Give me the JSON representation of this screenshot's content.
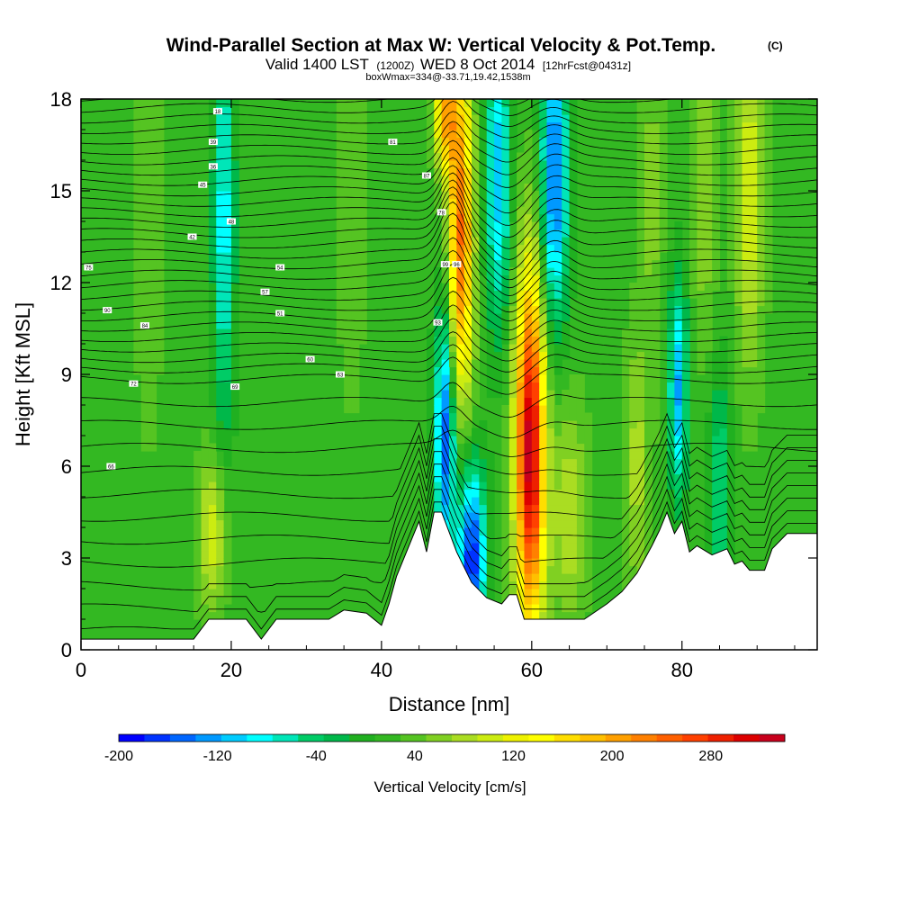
{
  "chart_data": {
    "type": "heatmap",
    "title": "Wind-Parallel Section at Max W: Vertical Velocity & Pot.Temp.",
    "title_mark": "(C)",
    "subtitle": {
      "valid_a": "Valid 1400 LST",
      "valid_b": "(1200Z)",
      "valid_c": "WED 8 Oct 2014",
      "valid_d": "[12hrFcst@0431z]"
    },
    "subtitle2": "boxWmax=334@-33.71,19.42,1538m",
    "xlabel": "Distance [nm]",
    "ylabel": "Height [Kft MSL]",
    "xlim": [
      0,
      98
    ],
    "ylim": [
      0,
      18
    ],
    "xticks": [
      0,
      20,
      40,
      60,
      80
    ],
    "yticks": [
      0,
      3,
      6,
      9,
      12,
      15,
      18
    ],
    "colorbar": {
      "label": "Vertical Velocity [cm/s]",
      "range": [
        -200,
        340
      ],
      "tick_values": [
        -200,
        -120,
        -40,
        40,
        120,
        200,
        280
      ],
      "tick_labels": [
        "-200",
        "-120",
        "-40",
        "40",
        "120",
        "200",
        "280"
      ],
      "colors": [
        "#0000ff",
        "#0033ff",
        "#0066ff",
        "#0099ff",
        "#00ccff",
        "#00ffff",
        "#00e6b8",
        "#00cc66",
        "#00b84a",
        "#20b020",
        "#33b822",
        "#55c422",
        "#80d022",
        "#aadd22",
        "#ccec11",
        "#eef200",
        "#ffff00",
        "#ffde00",
        "#ffc000",
        "#ffa000",
        "#ff8000",
        "#ff6000",
        "#ff4000",
        "#ee2000",
        "#dd0000",
        "#c8001c"
      ]
    },
    "terrain_kft": [
      [
        0,
        0.35
      ],
      [
        15,
        0.35
      ],
      [
        17,
        1
      ],
      [
        22,
        1
      ],
      [
        24,
        0.35
      ],
      [
        26,
        1
      ],
      [
        33,
        1
      ],
      [
        35,
        1.3
      ],
      [
        38,
        1.2
      ],
      [
        40,
        0.8
      ],
      [
        41,
        1.5
      ],
      [
        42,
        2.4
      ],
      [
        44,
        3.6
      ],
      [
        45,
        4.2
      ],
      [
        46,
        3.2
      ],
      [
        47,
        4.5
      ],
      [
        48,
        4.5
      ],
      [
        50,
        3.2
      ],
      [
        52,
        2.2
      ],
      [
        54,
        1.7
      ],
      [
        56,
        1.5
      ],
      [
        57,
        1.8
      ],
      [
        58,
        1.8
      ],
      [
        59,
        1.0
      ],
      [
        67,
        1.0
      ],
      [
        70,
        1.5
      ],
      [
        72,
        1.9
      ],
      [
        74,
        2.5
      ],
      [
        76,
        3.4
      ],
      [
        77,
        3.9
      ],
      [
        78,
        4.5
      ],
      [
        79,
        3.8
      ],
      [
        80,
        4.2
      ],
      [
        81,
        3.2
      ],
      [
        82,
        3.4
      ],
      [
        84,
        3.1
      ],
      [
        86,
        3.3
      ],
      [
        87,
        2.8
      ],
      [
        88,
        2.9
      ],
      [
        89,
        2.6
      ],
      [
        91,
        2.6
      ],
      [
        92,
        3.3
      ],
      [
        94,
        3.8
      ],
      [
        98,
        3.8
      ]
    ],
    "updrafts": [
      {
        "x": 59.8,
        "z": 6.5,
        "w": 334,
        "sx": 1.4,
        "sz": 4.2
      },
      {
        "x": 50.5,
        "z": 13.5,
        "w": 240,
        "sx": 1.2,
        "sz": 4.0
      },
      {
        "x": 48.5,
        "z": 17.5,
        "w": 180,
        "sx": 1.0,
        "sz": 1.3
      },
      {
        "x": 17.5,
        "z": 3.8,
        "w": 110,
        "sx": 1.3,
        "sz": 1.8
      },
      {
        "x": 65.0,
        "z": 4.5,
        "w": 90,
        "sx": 1.6,
        "sz": 2.5
      },
      {
        "x": 74.0,
        "z": 6.0,
        "w": 80,
        "sx": 1.2,
        "sz": 3.0
      },
      {
        "x": 89.0,
        "z": 15.0,
        "w": 110,
        "sx": 1.3,
        "sz": 4.0
      },
      {
        "x": 83.0,
        "z": 15.0,
        "w": 70,
        "sx": 1.2,
        "sz": 3.5
      },
      {
        "x": 76.0,
        "z": 15.0,
        "w": 60,
        "sx": 1.0,
        "sz": 3.5
      },
      {
        "x": 9.0,
        "z": 14.0,
        "w": 40,
        "sx": 1.5,
        "sz": 6.0
      },
      {
        "x": 36.0,
        "z": 14.0,
        "w": 50,
        "sx": 1.2,
        "sz": 4.0
      }
    ],
    "downdrafts": [
      {
        "x": 52.0,
        "z": 3.0,
        "w": -180,
        "sx": 1.3,
        "sz": 2.2
      },
      {
        "x": 48.5,
        "z": 7.0,
        "w": -160,
        "sx": 1.0,
        "sz": 3.0
      },
      {
        "x": 63.0,
        "z": 15.5,
        "w": -150,
        "sx": 1.3,
        "sz": 3.5
      },
      {
        "x": 55.5,
        "z": 15.5,
        "w": -110,
        "sx": 1.2,
        "sz": 3.5
      },
      {
        "x": 79.5,
        "z": 8.5,
        "w": -120,
        "sx": 0.9,
        "sz": 2.5
      },
      {
        "x": 19.0,
        "z": 14.0,
        "w": -90,
        "sx": 1.0,
        "sz": 5.0
      },
      {
        "x": 85.0,
        "z": 5.0,
        "w": -60,
        "sx": 1.0,
        "sz": 3.0
      }
    ],
    "background_w": 20,
    "isentrope_labels": [
      "18",
      "39",
      "36",
      "45",
      "42",
      "48",
      "54",
      "57",
      "51",
      "60",
      "63",
      "69",
      "72",
      "66",
      "75",
      "90",
      "84",
      "81",
      "87",
      "78",
      "99",
      "96",
      "93"
    ]
  }
}
